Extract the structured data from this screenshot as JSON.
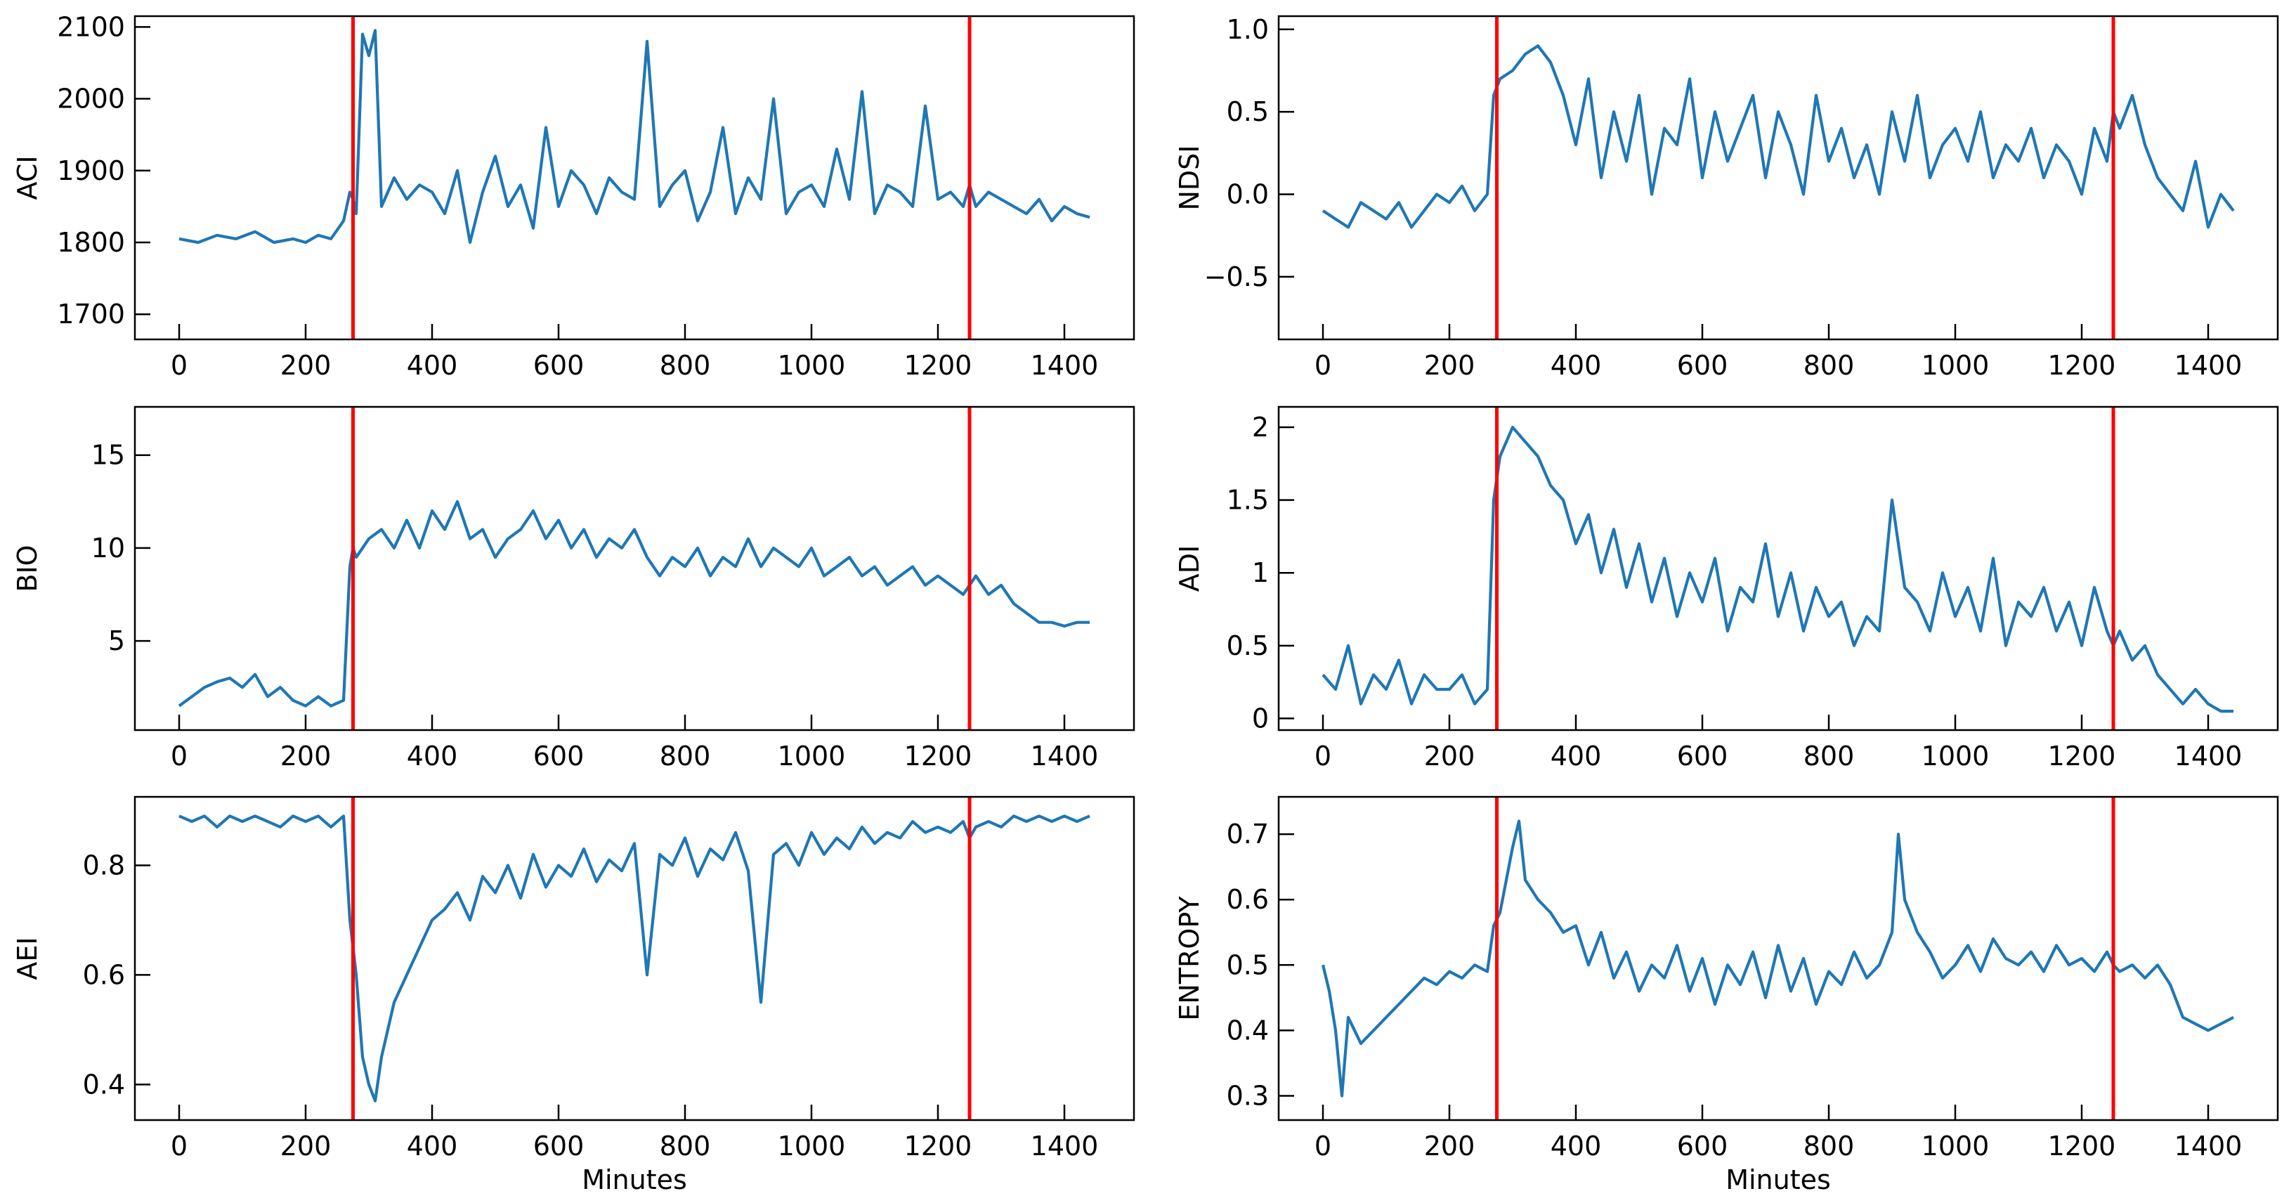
{
  "figure": {
    "line_color": "#1f77b4",
    "marker_color": "#ff0000",
    "xlabel": "Minutes"
  },
  "chart_data": [
    {
      "type": "line",
      "ylabel": "ACI",
      "xlabel": "",
      "xlim": [
        -70,
        1510
      ],
      "ylim": [
        1665,
        2115
      ],
      "xticks": [
        0,
        200,
        400,
        600,
        800,
        1000,
        1200,
        1400
      ],
      "yticks": [
        1700,
        1800,
        1900,
        2000,
        2100
      ],
      "vlines": [
        275,
        1250
      ],
      "x": [
        0,
        30,
        60,
        90,
        120,
        150,
        180,
        200,
        220,
        240,
        260,
        270,
        275,
        280,
        290,
        300,
        310,
        320,
        340,
        360,
        380,
        400,
        420,
        440,
        460,
        480,
        500,
        520,
        540,
        560,
        580,
        600,
        620,
        640,
        660,
        680,
        700,
        720,
        740,
        760,
        780,
        800,
        820,
        840,
        860,
        880,
        900,
        920,
        940,
        960,
        980,
        1000,
        1020,
        1040,
        1060,
        1080,
        1100,
        1120,
        1140,
        1160,
        1180,
        1200,
        1220,
        1240,
        1250,
        1260,
        1280,
        1300,
        1320,
        1340,
        1360,
        1380,
        1400,
        1420,
        1440
      ],
      "values": [
        1805,
        1800,
        1810,
        1805,
        1815,
        1800,
        1805,
        1800,
        1810,
        1805,
        1830,
        1870,
        1860,
        1840,
        2090,
        2060,
        2095,
        1850,
        1890,
        1860,
        1880,
        1870,
        1840,
        1900,
        1800,
        1870,
        1920,
        1850,
        1880,
        1820,
        1960,
        1850,
        1900,
        1880,
        1840,
        1890,
        1870,
        1860,
        2080,
        1850,
        1880,
        1900,
        1830,
        1870,
        1960,
        1840,
        1890,
        1860,
        2000,
        1840,
        1870,
        1880,
        1850,
        1930,
        1860,
        2010,
        1840,
        1880,
        1870,
        1850,
        1990,
        1860,
        1870,
        1850,
        1880,
        1850,
        1870,
        1860,
        1850,
        1840,
        1860,
        1830,
        1850,
        1840,
        1835
      ]
    },
    {
      "type": "line",
      "ylabel": "NDSI",
      "xlabel": "",
      "xlim": [
        -70,
        1510
      ],
      "ylim": [
        -0.88,
        1.08
      ],
      "xticks": [
        0,
        200,
        400,
        600,
        800,
        1000,
        1200,
        1400
      ],
      "yticks": [
        -0.5,
        0.0,
        0.5,
        1.0
      ],
      "yticklabels": [
        "−0.5",
        "0.0",
        "0.5",
        "1.0"
      ],
      "vlines": [
        275,
        1250
      ],
      "x": [
        0,
        20,
        40,
        60,
        80,
        100,
        120,
        140,
        160,
        180,
        200,
        220,
        240,
        260,
        270,
        280,
        300,
        320,
        340,
        360,
        380,
        400,
        420,
        440,
        460,
        480,
        500,
        520,
        540,
        560,
        580,
        600,
        620,
        640,
        660,
        680,
        700,
        720,
        740,
        760,
        780,
        800,
        820,
        840,
        860,
        880,
        900,
        920,
        940,
        960,
        980,
        1000,
        1020,
        1040,
        1060,
        1080,
        1100,
        1120,
        1140,
        1160,
        1180,
        1200,
        1220,
        1240,
        1250,
        1260,
        1280,
        1300,
        1320,
        1340,
        1360,
        1380,
        1400,
        1420,
        1440
      ],
      "values": [
        -0.1,
        -0.15,
        -0.2,
        -0.05,
        -0.1,
        -0.15,
        -0.05,
        -0.2,
        -0.1,
        0.0,
        -0.05,
        0.05,
        -0.1,
        0.0,
        0.6,
        0.7,
        0.75,
        0.85,
        0.9,
        0.8,
        0.6,
        0.3,
        0.7,
        0.1,
        0.5,
        0.2,
        0.6,
        0.0,
        0.4,
        0.3,
        0.7,
        0.1,
        0.5,
        0.2,
        0.4,
        0.6,
        0.1,
        0.5,
        0.3,
        0.0,
        0.6,
        0.2,
        0.4,
        0.1,
        0.3,
        0.0,
        0.5,
        0.2,
        0.6,
        0.1,
        0.3,
        0.4,
        0.2,
        0.5,
        0.1,
        0.3,
        0.2,
        0.4,
        0.1,
        0.3,
        0.2,
        0.0,
        0.4,
        0.2,
        0.5,
        0.4,
        0.6,
        0.3,
        0.1,
        0.0,
        -0.1,
        0.2,
        -0.2,
        0.0,
        -0.1
      ]
    },
    {
      "type": "line",
      "ylabel": "BIO",
      "xlabel": "",
      "xlim": [
        -70,
        1510
      ],
      "ylim": [
        0.2,
        17.6
      ],
      "xticks": [
        0,
        200,
        400,
        600,
        800,
        1000,
        1200,
        1400
      ],
      "yticks": [
        5,
        10,
        15
      ],
      "vlines": [
        275,
        1250
      ],
      "x": [
        0,
        20,
        40,
        60,
        80,
        100,
        120,
        140,
        160,
        180,
        200,
        220,
        240,
        260,
        270,
        275,
        280,
        300,
        320,
        340,
        360,
        380,
        400,
        420,
        440,
        460,
        480,
        500,
        520,
        540,
        560,
        580,
        600,
        620,
        640,
        660,
        680,
        700,
        720,
        740,
        760,
        780,
        800,
        820,
        840,
        860,
        880,
        900,
        920,
        940,
        960,
        980,
        1000,
        1020,
        1040,
        1060,
        1080,
        1100,
        1120,
        1140,
        1160,
        1180,
        1200,
        1220,
        1240,
        1250,
        1260,
        1280,
        1300,
        1320,
        1340,
        1360,
        1380,
        1400,
        1420,
        1440
      ],
      "values": [
        1.5,
        2.0,
        2.5,
        2.8,
        3.0,
        2.5,
        3.2,
        2.0,
        2.5,
        1.8,
        1.5,
        2.0,
        1.5,
        1.8,
        9.0,
        10.0,
        9.5,
        10.5,
        11.0,
        10.0,
        11.5,
        10.0,
        12.0,
        11.0,
        12.5,
        10.5,
        11.0,
        9.5,
        10.5,
        11.0,
        12.0,
        10.5,
        11.5,
        10.0,
        11.0,
        9.5,
        10.5,
        10.0,
        11.0,
        9.5,
        8.5,
        9.5,
        9.0,
        10.0,
        8.5,
        9.5,
        9.0,
        10.5,
        9.0,
        10.0,
        9.5,
        9.0,
        10.0,
        8.5,
        9.0,
        9.5,
        8.5,
        9.0,
        8.0,
        8.5,
        9.0,
        8.0,
        8.5,
        8.0,
        7.5,
        8.0,
        8.5,
        7.5,
        8.0,
        7.0,
        6.5,
        6.0,
        6.0,
        5.8,
        6.0,
        6.0
      ]
    },
    {
      "type": "line",
      "ylabel": "ADI",
      "xlabel": "",
      "xlim": [
        -70,
        1510
      ],
      "ylim": [
        -0.08,
        2.14
      ],
      "xticks": [
        0,
        200,
        400,
        600,
        800,
        1000,
        1200,
        1400
      ],
      "yticks": [
        0.0,
        0.5,
        1.0,
        1.5,
        2.0
      ],
      "vlines": [
        275,
        1250
      ],
      "x": [
        0,
        20,
        40,
        60,
        80,
        100,
        120,
        140,
        160,
        180,
        200,
        220,
        240,
        260,
        270,
        280,
        300,
        320,
        340,
        360,
        380,
        400,
        420,
        440,
        460,
        480,
        500,
        520,
        540,
        560,
        580,
        600,
        620,
        640,
        660,
        680,
        700,
        720,
        740,
        760,
        780,
        800,
        820,
        840,
        860,
        880,
        900,
        920,
        940,
        960,
        980,
        1000,
        1020,
        1040,
        1060,
        1080,
        1100,
        1120,
        1140,
        1160,
        1180,
        1200,
        1220,
        1240,
        1250,
        1260,
        1280,
        1300,
        1320,
        1340,
        1360,
        1380,
        1400,
        1420,
        1440
      ],
      "values": [
        0.3,
        0.2,
        0.5,
        0.1,
        0.3,
        0.2,
        0.4,
        0.1,
        0.3,
        0.2,
        0.2,
        0.3,
        0.1,
        0.2,
        1.5,
        1.8,
        2.0,
        1.9,
        1.8,
        1.6,
        1.5,
        1.2,
        1.4,
        1.0,
        1.3,
        0.9,
        1.2,
        0.8,
        1.1,
        0.7,
        1.0,
        0.8,
        1.1,
        0.6,
        0.9,
        0.8,
        1.2,
        0.7,
        1.0,
        0.6,
        0.9,
        0.7,
        0.8,
        0.5,
        0.7,
        0.6,
        1.5,
        0.9,
        0.8,
        0.6,
        1.0,
        0.7,
        0.9,
        0.6,
        1.1,
        0.5,
        0.8,
        0.7,
        0.9,
        0.6,
        0.8,
        0.5,
        0.9,
        0.6,
        0.5,
        0.6,
        0.4,
        0.5,
        0.3,
        0.2,
        0.1,
        0.2,
        0.1,
        0.05,
        0.05
      ]
    },
    {
      "type": "line",
      "ylabel": "AEI",
      "xlabel": "Minutes",
      "xlim": [
        -70,
        1510
      ],
      "ylim": [
        0.335,
        0.925
      ],
      "xticks": [
        0,
        200,
        400,
        600,
        800,
        1000,
        1200,
        1400
      ],
      "yticks": [
        0.4,
        0.6,
        0.8
      ],
      "vlines": [
        275,
        1250
      ],
      "x": [
        0,
        20,
        40,
        60,
        80,
        100,
        120,
        140,
        160,
        180,
        200,
        220,
        240,
        260,
        270,
        275,
        280,
        290,
        300,
        310,
        320,
        340,
        360,
        380,
        400,
        420,
        440,
        460,
        480,
        500,
        520,
        540,
        560,
        580,
        600,
        620,
        640,
        660,
        680,
        700,
        720,
        740,
        760,
        780,
        800,
        820,
        840,
        860,
        880,
        900,
        920,
        940,
        960,
        980,
        1000,
        1020,
        1040,
        1060,
        1080,
        1100,
        1120,
        1140,
        1160,
        1180,
        1200,
        1220,
        1240,
        1250,
        1260,
        1280,
        1300,
        1320,
        1340,
        1360,
        1380,
        1400,
        1420,
        1440
      ],
      "values": [
        0.89,
        0.88,
        0.89,
        0.87,
        0.89,
        0.88,
        0.89,
        0.88,
        0.87,
        0.89,
        0.88,
        0.89,
        0.87,
        0.89,
        0.7,
        0.65,
        0.6,
        0.45,
        0.4,
        0.37,
        0.45,
        0.55,
        0.6,
        0.65,
        0.7,
        0.72,
        0.75,
        0.7,
        0.78,
        0.75,
        0.8,
        0.74,
        0.82,
        0.76,
        0.8,
        0.78,
        0.83,
        0.77,
        0.81,
        0.79,
        0.84,
        0.6,
        0.82,
        0.8,
        0.85,
        0.78,
        0.83,
        0.81,
        0.86,
        0.79,
        0.55,
        0.82,
        0.84,
        0.8,
        0.86,
        0.82,
        0.85,
        0.83,
        0.87,
        0.84,
        0.86,
        0.85,
        0.88,
        0.86,
        0.87,
        0.86,
        0.88,
        0.85,
        0.87,
        0.88,
        0.87,
        0.89,
        0.88,
        0.89,
        0.88,
        0.89,
        0.88,
        0.89
      ]
    },
    {
      "type": "line",
      "ylabel": "ENTROPY",
      "xlabel": "Minutes",
      "xlim": [
        -70,
        1510
      ],
      "ylim": [
        0.263,
        0.757
      ],
      "xticks": [
        0,
        200,
        400,
        600,
        800,
        1000,
        1200,
        1400
      ],
      "yticks": [
        0.3,
        0.4,
        0.5,
        0.6,
        0.7
      ],
      "vlines": [
        275,
        1250
      ],
      "x": [
        0,
        10,
        20,
        30,
        40,
        60,
        80,
        100,
        120,
        140,
        160,
        180,
        200,
        220,
        240,
        260,
        270,
        280,
        300,
        310,
        320,
        340,
        360,
        380,
        400,
        420,
        440,
        460,
        480,
        500,
        520,
        540,
        560,
        580,
        600,
        620,
        640,
        660,
        680,
        700,
        720,
        740,
        760,
        780,
        800,
        820,
        840,
        860,
        880,
        900,
        910,
        920,
        940,
        960,
        980,
        1000,
        1020,
        1040,
        1060,
        1080,
        1100,
        1120,
        1140,
        1160,
        1180,
        1200,
        1220,
        1240,
        1250,
        1260,
        1280,
        1300,
        1320,
        1340,
        1360,
        1380,
        1400,
        1420,
        1440
      ],
      "values": [
        0.5,
        0.46,
        0.4,
        0.3,
        0.42,
        0.38,
        0.4,
        0.42,
        0.44,
        0.46,
        0.48,
        0.47,
        0.49,
        0.48,
        0.5,
        0.49,
        0.56,
        0.58,
        0.68,
        0.72,
        0.63,
        0.6,
        0.58,
        0.55,
        0.56,
        0.5,
        0.55,
        0.48,
        0.52,
        0.46,
        0.5,
        0.48,
        0.53,
        0.46,
        0.51,
        0.44,
        0.5,
        0.47,
        0.52,
        0.45,
        0.53,
        0.46,
        0.51,
        0.44,
        0.49,
        0.47,
        0.52,
        0.48,
        0.5,
        0.55,
        0.7,
        0.6,
        0.55,
        0.52,
        0.48,
        0.5,
        0.53,
        0.49,
        0.54,
        0.51,
        0.5,
        0.52,
        0.49,
        0.53,
        0.5,
        0.51,
        0.49,
        0.52,
        0.5,
        0.49,
        0.5,
        0.48,
        0.5,
        0.47,
        0.42,
        0.41,
        0.4,
        0.41,
        0.42
      ]
    }
  ]
}
